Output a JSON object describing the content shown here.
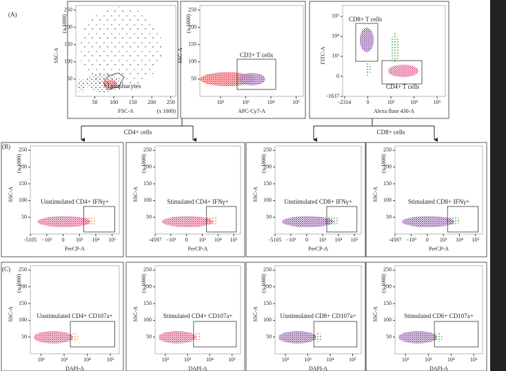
{
  "panel_labels": [
    "(A)",
    "(B)",
    "(C)"
  ],
  "branch_labels": [
    "CD4+ cells",
    "CD8+ cells"
  ],
  "rows": [
    [
      {
        "y_label": "SSC-A",
        "y_unit": "(x 1000)",
        "x_label": "FSC-A",
        "x_unit": "(x 1000)",
        "yticks": [
          50,
          100,
          150,
          200,
          250
        ],
        "xticks": [
          50,
          100,
          150,
          200,
          250
        ],
        "gates": [
          "Lymphocytes"
        ]
      },
      {
        "y_label": "SSC-A",
        "y_unit": "(x 1000)",
        "x_label": "APC-Cy7-A",
        "yticks": [
          50,
          100,
          150,
          200,
          250
        ],
        "xticks": [
          "10²",
          "10³",
          "10⁴",
          "10⁵"
        ],
        "gates": [
          "CD3+ T cells"
        ]
      },
      {
        "y_label": "FITC-A",
        "x_label": "Alexa fluor 430-A",
        "yticks": [
          "-1637",
          0,
          "10³",
          "10⁴",
          "10⁵"
        ],
        "xticks": [
          "-2314",
          0,
          "10³",
          "10⁴",
          "10⁵"
        ],
        "gates": [
          "CD8+ T cells",
          "CD4+ T cells"
        ]
      }
    ],
    [
      {
        "y_label": "SSC-A",
        "y_unit": "(x 1000)",
        "x_label": "PerCP-A",
        "yticks": [
          50,
          100,
          150,
          200,
          250
        ],
        "xticks": [
          "-5105",
          "−10³",
          0,
          "10³",
          "10⁴",
          "10⁵"
        ],
        "gates": [
          "Unstimulated CD4+ IFNγ+"
        ]
      },
      {
        "y_label": "SSC-A",
        "y_unit": "(x 1000)",
        "x_label": "PerCP-A",
        "yticks": [
          50,
          100,
          150,
          200,
          250
        ],
        "xticks": [
          "-4597",
          "−10³",
          0,
          "10³",
          "10⁴",
          "10⁵"
        ],
        "gates": [
          "Stimulated CD4+ IFNγ+"
        ]
      },
      {
        "y_label": "SSC-A",
        "y_unit": "(x 1000)",
        "x_label": "PerCP-A",
        "yticks": [
          50,
          100,
          150,
          200,
          250
        ],
        "xticks": [
          "-5105",
          "−10³",
          0,
          "10³",
          "10⁴",
          "10⁵"
        ],
        "gates": [
          "Unstimulated CD8+ IFNγ+"
        ]
      },
      {
        "y_label": "SSC-A",
        "y_unit": "(x 1000)",
        "x_label": "PerCP-A",
        "yticks": [
          50,
          100,
          150,
          200,
          250
        ],
        "xticks": [
          "-4597",
          "−10³",
          0,
          "10³",
          "10⁴",
          "10⁵"
        ],
        "gates": [
          "Stimulated CD8+ IFNγ+"
        ]
      }
    ],
    [
      {
        "y_label": "SSC-A",
        "y_unit": "(x 1000)",
        "x_label": "DAPI-A",
        "yticks": [
          50,
          100,
          150,
          200,
          250
        ],
        "xticks": [
          "10²",
          "10³",
          "10⁴",
          "10⁵"
        ],
        "gates": [
          "Unstimulated CD4+ CD107a+"
        ]
      },
      {
        "y_label": "SSC-A",
        "y_unit": "(x 1000)",
        "x_label": "DAPI-A",
        "yticks": [
          50,
          100,
          150,
          200,
          250
        ],
        "xticks": [
          "10²",
          "10³",
          "10⁴",
          "10⁵"
        ],
        "gates": [
          "Stimulated CD4+ CD107a+"
        ]
      },
      {
        "y_label": "SSC-A",
        "y_unit": "(x 1000)",
        "x_label": "DAPI-A",
        "yticks": [
          50,
          100,
          150,
          200,
          250
        ],
        "xticks": [
          "10²",
          "10³",
          "10⁴",
          "10⁵"
        ],
        "gates": [
          "Unstimulated CD8+ CD107a+"
        ]
      },
      {
        "y_label": "SSC-A",
        "y_unit": "(x 1000)",
        "x_label": "DAPI-A",
        "yticks": [
          50,
          100,
          150,
          200,
          250
        ],
        "xticks": [
          "10²",
          "10³",
          "10⁴",
          "10⁵"
        ],
        "gates": [
          "Stimulated CD6+ CD107a+"
        ]
      }
    ]
  ]
}
